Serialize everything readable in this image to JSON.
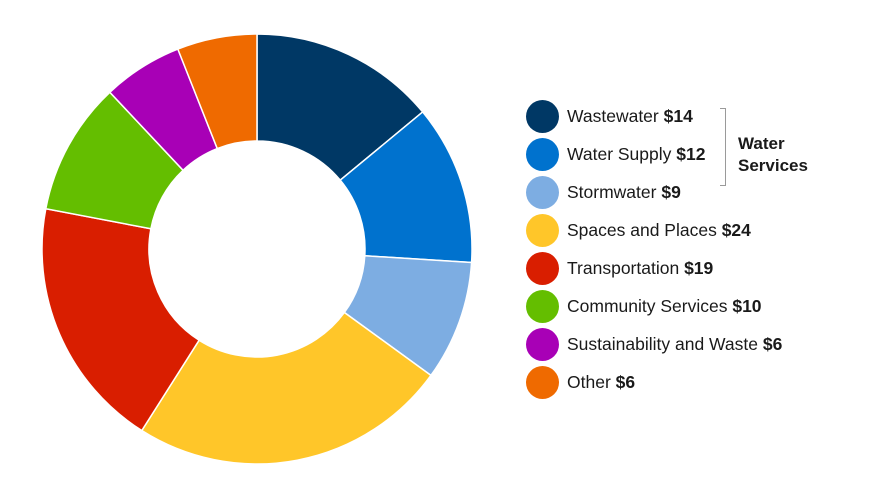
{
  "chart_data": {
    "type": "pie",
    "variant": "donut",
    "title": "",
    "slices": [
      {
        "label": "Wastewater",
        "value": 14,
        "value_label": "$14",
        "color": "#003865",
        "group": "Water Services"
      },
      {
        "label": "Water Supply",
        "value": 12,
        "value_label": "$12",
        "color": "#0072CE",
        "group": "Water Services"
      },
      {
        "label": "Stormwater",
        "value": 9,
        "value_label": "$9",
        "color": "#7DADE2",
        "group": "Water Services"
      },
      {
        "label": "Spaces and Places",
        "value": 24,
        "value_label": "$24",
        "color": "#FFC629"
      },
      {
        "label": "Transportation",
        "value": 19,
        "value_label": "$19",
        "color": "#D91E00"
      },
      {
        "label": "Community Services",
        "value": 10,
        "value_label": "$10",
        "color": "#64BE00"
      },
      {
        "label": "Sustainability and Waste",
        "value": 6,
        "value_label": "$6",
        "color": "#A800B6"
      },
      {
        "label": "Other",
        "value": 6,
        "value_label": "$6",
        "color": "#EF6A00"
      }
    ],
    "legend_position": "right",
    "legend_group": {
      "label_line1": "Water",
      "label_line2": "Services",
      "members": [
        "Wastewater",
        "Water Supply",
        "Stormwater"
      ]
    }
  }
}
